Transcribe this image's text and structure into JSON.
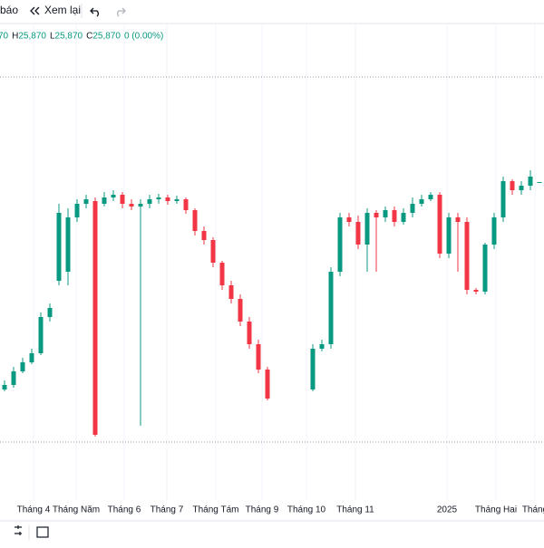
{
  "toolbar": {
    "items": [
      "báo",
      "Xem lại"
    ]
  },
  "legend": {
    "items": [
      {
        "label": "",
        "value": "70"
      },
      {
        "label": "H",
        "value": "25,870"
      },
      {
        "label": "L",
        "value": "25,870"
      },
      {
        "label": "C",
        "value": "25,870"
      },
      {
        "label": "",
        "value": "0 (0.00%)"
      }
    ]
  },
  "chart_data": {
    "type": "candlestick",
    "up_color": "#089981",
    "down_color": "#f23645",
    "ylim": [
      24150,
      26725
    ],
    "xlim": [
      -0.5,
      59.5
    ],
    "xticks": [
      {
        "value": 3.2,
        "label": "Tháng 4"
      },
      {
        "value": 7.9,
        "label": "Tháng Năm"
      },
      {
        "value": 13.2,
        "label": "Tháng 6"
      },
      {
        "value": 17.9,
        "label": "Tháng 7"
      },
      {
        "value": 23.3,
        "label": "Tháng Tám"
      },
      {
        "value": 28.4,
        "label": "Tháng 9"
      },
      {
        "value": 33.3,
        "label": "Tháng 10"
      },
      {
        "value": 38.7,
        "label": "Tháng 11"
      },
      {
        "value": 48.8,
        "label": "2025"
      },
      {
        "value": 54.2,
        "label": "Tháng Hai"
      },
      {
        "value": 58.5,
        "label": "Tháng"
      }
    ],
    "grid": true,
    "price_lines": [
      26450,
      24435
    ],
    "open": [
      24725,
      24750,
      24825,
      24875,
      24925,
      25125,
      25325,
      25375,
      25675,
      25750,
      25765,
      25750,
      25785,
      25800,
      25750,
      25735,
      25750,
      25775,
      25785,
      25765,
      25775,
      25715,
      25600,
      25550,
      25425,
      25300,
      25225,
      25100,
      24975,
      24835,
      null,
      null,
      null,
      null,
      24725,
      24950,
      24975,
      25375,
      25675,
      25650,
      25525,
      25700,
      25675,
      25715,
      25650,
      25700,
      25750,
      25775,
      25800,
      25475,
      25675,
      25650,
      25275,
      25265,
      25525,
      25675,
      25875,
      25825,
      25850,
      25870
    ],
    "high": [
      24775,
      24850,
      24900,
      24950,
      25150,
      25200,
      25750,
      25725,
      25775,
      25800,
      25785,
      25815,
      25825,
      25815,
      25775,
      25775,
      25800,
      25805,
      25800,
      25795,
      25785,
      25725,
      25625,
      25565,
      25435,
      25325,
      25250,
      25125,
      25000,
      24850,
      null,
      null,
      null,
      null,
      24975,
      25000,
      25400,
      25700,
      25700,
      25685,
      25725,
      25715,
      25735,
      25735,
      25725,
      25785,
      25800,
      25815,
      25815,
      25700,
      25700,
      25675,
      25285,
      25535,
      25700,
      25900,
      25885,
      25875,
      25935,
      25870
    ],
    "low": [
      24715,
      24735,
      24815,
      24865,
      24915,
      25100,
      25300,
      25300,
      25650,
      25725,
      24465,
      25735,
      25765,
      25725,
      25715,
      24525,
      25725,
      25750,
      25745,
      25750,
      25695,
      25575,
      25525,
      25400,
      25275,
      25200,
      25075,
      24950,
      24815,
      24665,
      null,
      null,
      null,
      null,
      24715,
      24935,
      24950,
      25350,
      25625,
      25500,
      25375,
      25375,
      25650,
      25625,
      25635,
      25675,
      25735,
      25765,
      25450,
      25450,
      25375,
      25250,
      25250,
      25250,
      25500,
      25650,
      25800,
      25800,
      25825,
      25870
    ],
    "close": [
      24750,
      24825,
      24875,
      24925,
      25125,
      25175,
      25700,
      25675,
      25750,
      25775,
      24475,
      25785,
      25800,
      25750,
      25735,
      25750,
      25775,
      25785,
      25765,
      25775,
      25715,
      25600,
      25550,
      25425,
      25300,
      25225,
      25100,
      24975,
      24835,
      24675,
      null,
      null,
      null,
      null,
      24950,
      24975,
      25375,
      25675,
      25650,
      25525,
      25700,
      25675,
      25715,
      25650,
      25700,
      25750,
      25775,
      25800,
      25475,
      25675,
      25650,
      25275,
      25265,
      25525,
      25675,
      25875,
      25825,
      25850,
      25900,
      25870
    ]
  }
}
